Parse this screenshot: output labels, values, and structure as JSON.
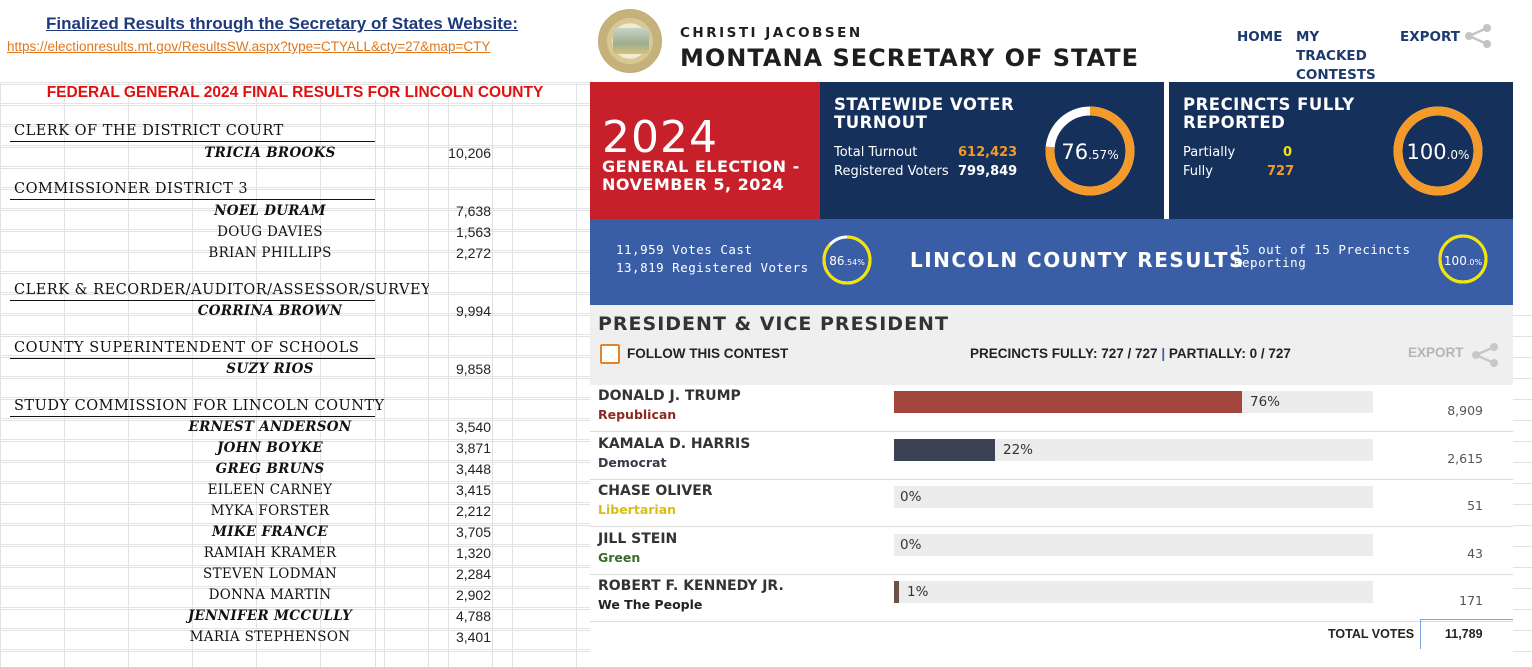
{
  "sheet": {
    "finalized_title": "Finalized Results through the Secretary of States Website:",
    "link": "https://electionresults.mt.gov/ResultsSW.aspx?type=CTYALL&cty=27&map=CTY",
    "banner": "FEDERAL GENERAL 2024 FINAL RESULTS FOR LINCOLN COUNTY",
    "sections": [
      {
        "title": "CLERK OF THE DISTRICT COURT",
        "candidates": [
          {
            "name": "TRICIA BROOKS",
            "votes": "10,206",
            "winner": true
          }
        ]
      },
      {
        "title": "COMMISSIONER DISTRICT 3",
        "candidates": [
          {
            "name": "NOEL DURAM",
            "votes": "7,638",
            "winner": true
          },
          {
            "name": "DOUG DAVIES",
            "votes": "1,563",
            "winner": false
          },
          {
            "name": "BRIAN PHILLIPS",
            "votes": "2,272",
            "winner": false
          }
        ]
      },
      {
        "title": "CLERK & RECORDER/AUDITOR/ASSESSOR/SURVEYOR",
        "candidates": [
          {
            "name": "CORRINA BROWN",
            "votes": "9,994",
            "winner": true
          }
        ]
      },
      {
        "title": "COUNTY SUPERINTENDENT OF SCHOOLS",
        "candidates": [
          {
            "name": "SUZY RIOS",
            "votes": "9,858",
            "winner": true
          }
        ]
      },
      {
        "title": "STUDY COMMISSION FOR LINCOLN COUNTY",
        "candidates": [
          {
            "name": "ERNEST ANDERSON",
            "votes": "3,540",
            "winner": true
          },
          {
            "name": "JOHN BOYKE",
            "votes": "3,871",
            "winner": true
          },
          {
            "name": "GREG BRUNS",
            "votes": "3,448",
            "winner": true
          },
          {
            "name": "EILEEN CARNEY",
            "votes": "3,415",
            "winner": false
          },
          {
            "name": "MYKA FORSTER",
            "votes": "2,212",
            "winner": false
          },
          {
            "name": "MIKE FRANCE",
            "votes": "3,705",
            "winner": true
          },
          {
            "name": "RAMIAH KRAMER",
            "votes": "1,320",
            "winner": false
          },
          {
            "name": "STEVEN LODMAN",
            "votes": "2,284",
            "winner": false
          },
          {
            "name": "DONNA MARTIN",
            "votes": "2,902",
            "winner": false
          },
          {
            "name": "JENNIFER MCCULLY",
            "votes": "4,788",
            "winner": true
          },
          {
            "name": "MARIA STEPHENSON",
            "votes": "3,401",
            "winner": false
          }
        ]
      }
    ]
  },
  "site": {
    "official": "CHRISTI JACOBSEN",
    "office": "MONTANA SECRETARY OF STATE",
    "nav": {
      "home": "HOME",
      "tracked": "MY TRACKED CONTESTS",
      "export": "EXPORT"
    },
    "seal_icon": "state-seal-icon",
    "share_icon": "share-icon",
    "hero": {
      "year": "2024",
      "election": "GENERAL ELECTION - NOVEMBER 5, 2024",
      "turnout_title": "STATEWIDE VOTER TURNOUT",
      "total_turnout_label": "Total Turnout",
      "total_turnout": "612,423",
      "registered_label": "Registered Voters",
      "registered": "799,849",
      "turnout_pct_main": "76",
      "turnout_pct_dec": ".57%",
      "turnout_fraction": 0.7657,
      "precincts_title": "PRECINCTS FULLY REPORTED",
      "partially_label": "Partially",
      "partially": "0",
      "fully_label": "Fully",
      "fully": "727",
      "precincts_pct_main": "100",
      "precincts_pct_dec": ".0%",
      "precincts_fraction": 1.0
    },
    "county": {
      "votes_cast": "11,959 Votes Cast",
      "registered": "13,819 Registered Voters",
      "pct_main": "86",
      "pct_dec": ".54%",
      "turnout_fraction": 0.8654,
      "title": "LINCOLN COUNTY RESULTS",
      "precincts": "15 out of 15 Precincts Reporting",
      "prec_pct_main": "100",
      "prec_pct_dec": ".0%",
      "prec_fraction": 1.0
    },
    "contest": {
      "title": "PRESIDENT & VICE PRESIDENT",
      "follow": "FOLLOW THIS CONTEST",
      "precincts_fully": "PRECINCTS FULLY: 727 / 727",
      "precincts_partially": "PARTIALLY: 0 / 727",
      "export": "EXPORT",
      "total_label": "TOTAL VOTES",
      "total": "11,789",
      "candidates": [
        {
          "name": "DONALD J. TRUMP",
          "party": "Republican",
          "pct": "76%",
          "fraction": 0.76,
          "votes": "8,909",
          "bar_color": "#a2463e",
          "party_color": "#8b2a22"
        },
        {
          "name": "KAMALA D. HARRIS",
          "party": "Democrat",
          "pct": "22%",
          "fraction": 0.22,
          "votes": "2,615",
          "bar_color": "#3b4254",
          "party_color": "#333a48"
        },
        {
          "name": "CHASE OLIVER",
          "party": "Libertarian",
          "pct": "0%",
          "fraction": 0.0,
          "votes": "51",
          "bar_color": "#d7c21b",
          "party_color": "#d9bd12"
        },
        {
          "name": "JILL STEIN",
          "party": "Green",
          "pct": "0%",
          "fraction": 0.0,
          "votes": "43",
          "bar_color": "#3c8a3a",
          "party_color": "#3b6b2c"
        },
        {
          "name": "ROBERT F. KENNEDY JR.",
          "party": "We The People",
          "pct": "1%",
          "fraction": 0.01,
          "votes": "171",
          "bar_color": "#6a5246",
          "party_color": "#222222"
        }
      ]
    },
    "colors": {
      "accent_orange": "#f39a2b",
      "ring_yellow": "#f2e600",
      "navy": "#16305c",
      "county_blue": "#3a5ea5",
      "red": "#c8202a"
    }
  }
}
